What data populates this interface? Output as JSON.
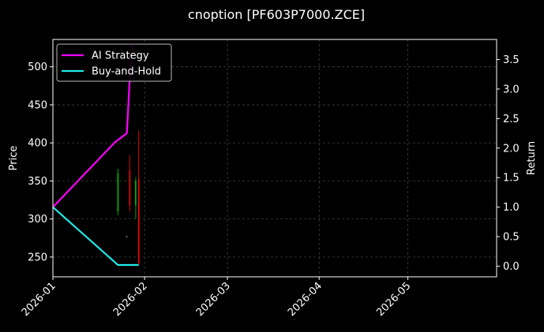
{
  "chart_data": {
    "type": "line",
    "title": "cnoption [PF603P7000.ZCE]",
    "ylabel": "Price",
    "y2label": "Return",
    "xlim": [
      "2026-01-01",
      "2026-05-31"
    ],
    "ylim": [
      224,
      536
    ],
    "y2lim": [
      -0.18,
      3.84
    ],
    "x_ticks": [
      "2026-01",
      "2026-02",
      "2026-03",
      "2026-04",
      "2026-05"
    ],
    "y_ticks": [
      250,
      300,
      350,
      400,
      450,
      500
    ],
    "y2_ticks": [
      0.0,
      0.5,
      1.0,
      1.5,
      2.0,
      2.5,
      3.0,
      3.5
    ],
    "y2_tick_labels": [
      "0.0",
      "0.5",
      "1.0",
      "1.5",
      "2.0",
      "2.5",
      "3.0",
      "3.5"
    ],
    "grid": true,
    "legend_position": "top-left",
    "series": [
      {
        "name": "AI Strategy",
        "axis": "right",
        "color": "#ff00ff",
        "points": [
          [
            "2026-01-01",
            1.0
          ],
          [
            "2026-01-22",
            2.1
          ],
          [
            "2026-01-26",
            2.25
          ],
          [
            "2026-01-27",
            3.2
          ],
          [
            "2026-01-28",
            3.75
          ]
        ]
      },
      {
        "name": "Buy-and-Hold",
        "axis": "right",
        "color": "#22e8e8",
        "points": [
          [
            "2026-01-01",
            1.0
          ],
          [
            "2026-01-23",
            0.02
          ],
          [
            "2026-01-30",
            0.02
          ]
        ]
      }
    ],
    "candles": [
      {
        "date": "2026-01-23",
        "open": 310,
        "high": 366,
        "low": 305,
        "close": 360,
        "color": "#00c000"
      },
      {
        "date": "2026-01-27",
        "open": 364,
        "high": 384,
        "low": 310,
        "close": 318,
        "color": "#ff0000"
      },
      {
        "date": "2026-01-29",
        "open": 318,
        "high": 355,
        "low": 300,
        "close": 350,
        "color": "#00c000"
      },
      {
        "date": "2026-01-30",
        "open": 352,
        "high": 416,
        "low": 240,
        "close": 242,
        "color": "#ff0000"
      },
      {
        "date": "2026-01-26",
        "open": 277,
        "high": 278,
        "low": 276,
        "close": 277,
        "color": "#888888"
      }
    ]
  }
}
